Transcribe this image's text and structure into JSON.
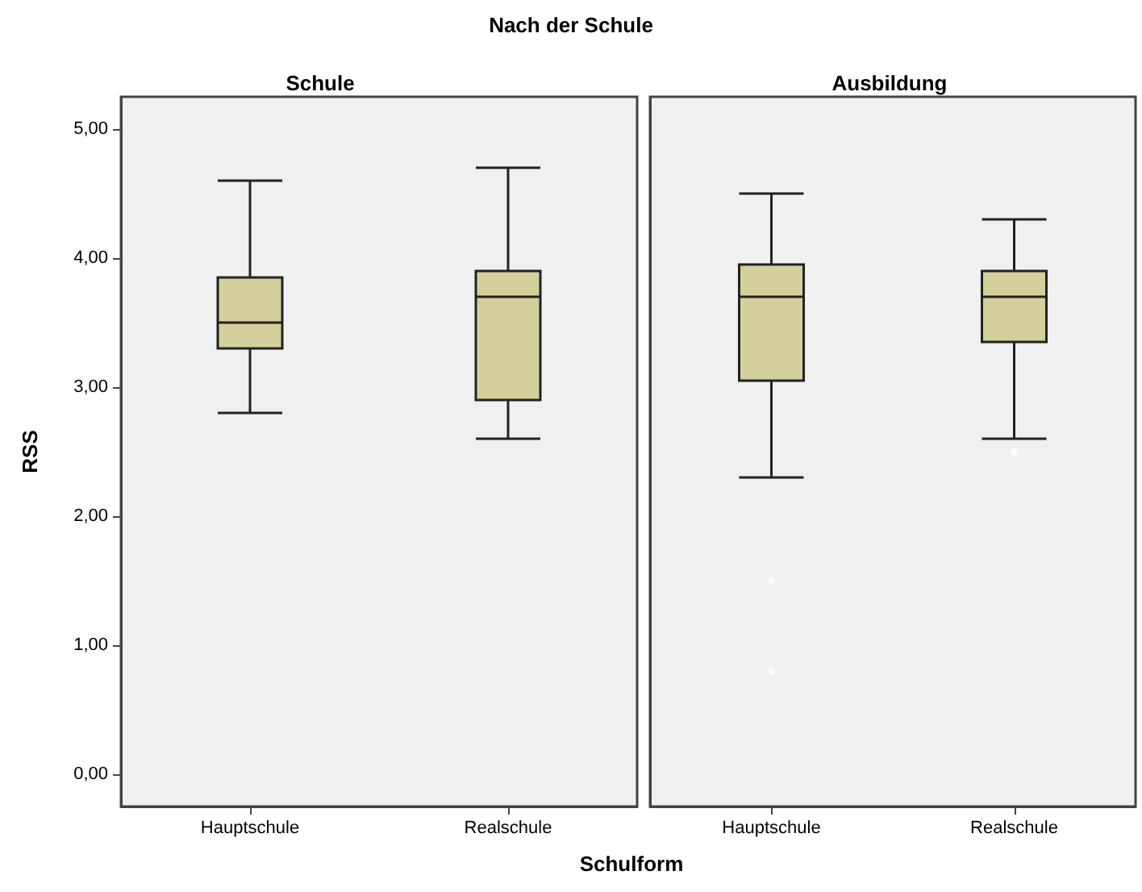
{
  "chart_data": [
    {
      "type": "box",
      "title": "Nach der Schule",
      "subtitle": "Schule",
      "xlabel": "Schulform",
      "ylabel": "RSS",
      "categories": [
        "Hauptschule",
        "Realschule"
      ],
      "series": [
        {
          "color": "#d4cf9b",
          "boxes": [
            {
              "low": 2.8,
              "q1": 3.3,
              "median": 3.5,
              "q3": 3.85,
              "high": 4.6
            },
            {
              "low": 2.6,
              "q1": 2.9,
              "median": 3.7,
              "q3": 3.9,
              "high": 4.7
            }
          ]
        }
      ],
      "ylim": [
        -0.25,
        5.25
      ],
      "yticks": [
        {
          "value": 0,
          "label": "0,00"
        },
        {
          "value": 1,
          "label": "1,00"
        },
        {
          "value": 2,
          "label": "2,00"
        },
        {
          "value": 3,
          "label": "3,00"
        },
        {
          "value": 4,
          "label": "4,00"
        },
        {
          "value": 5,
          "label": "5,00"
        }
      ],
      "grid": false
    },
    {
      "type": "box",
      "subtitle": "Ausbildung",
      "categories": [
        "Hauptschule",
        "Realschule"
      ],
      "series": [
        {
          "color": "#d4cf9b",
          "boxes": [
            {
              "low": 2.3,
              "q1": 3.05,
              "median": 3.7,
              "q3": 3.95,
              "high": 4.5,
              "outliers": [
                1.5,
                0.8
              ]
            },
            {
              "low": 2.6,
              "q1": 3.35,
              "median": 3.7,
              "q3": 3.9,
              "high": 4.3,
              "outliers": [
                2.5
              ]
            }
          ]
        }
      ],
      "ylim": [
        -0.25,
        5.25
      ],
      "grid": false,
      "tick_labels": "x"
    }
  ]
}
